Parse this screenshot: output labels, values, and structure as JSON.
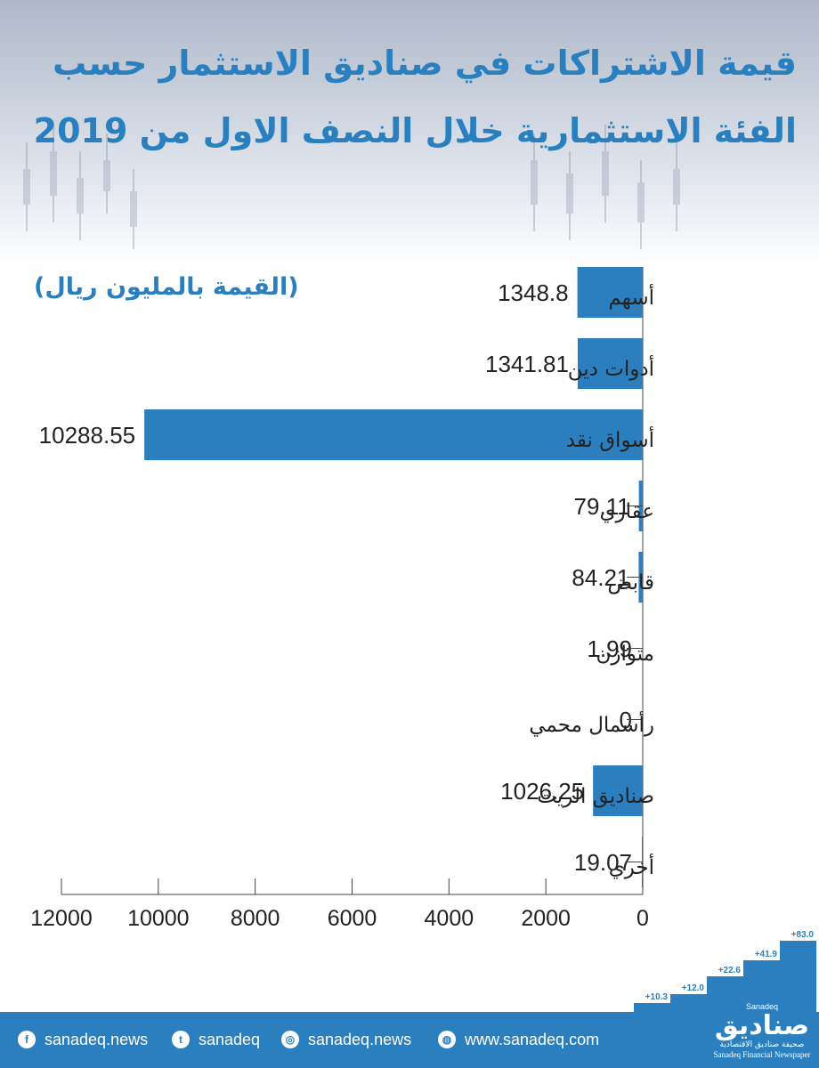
{
  "header": {
    "title_line1": "قيمة الاشتراكات في صناديق الاستثمار حسب",
    "title_line2": "الفئة الاستثمارية خلال النصف الاول من 2019"
  },
  "chart_data": {
    "type": "bar",
    "orientation": "horizontal",
    "unit_label": "(القيمة بالمليون ريال)",
    "categories": [
      "أسهم",
      "أدوات دين",
      "أسواق نقد",
      "عقاري",
      "قابض",
      "متوازن",
      "رأسمال محمي",
      "صناديق الريت",
      "أخري"
    ],
    "values": [
      1348.8,
      1341.81,
      10288.55,
      79.11,
      84.21,
      1.99,
      0,
      1026.25,
      19.07
    ],
    "value_labels": [
      "1348.8",
      "1341.81",
      "10288.55",
      "79.11",
      "84.21",
      "1.99",
      "0",
      "1026.25",
      "19.07"
    ],
    "xlim": [
      0,
      12000
    ],
    "x_ticks": [
      "0",
      "2000",
      "4000",
      "6000",
      "8000",
      "10000",
      "12000"
    ],
    "x_tick_values": [
      0,
      2000,
      4000,
      6000,
      8000,
      10000,
      12000
    ],
    "bar_color": "#2c7fbe",
    "grid": false
  },
  "decor": {
    "steps": [
      "+10.3",
      "+12.0",
      "+22.6",
      "+41.9",
      "+83.0"
    ]
  },
  "footer": {
    "facebook": "sanadeq.news",
    "twitter": "sanadeq",
    "instagram": "sanadeq.news",
    "website": "www.sanadeq.com",
    "brand_en_top": "Sanadeq",
    "brand_ar": "صناديق",
    "brand_ar_sub": "صحيفة صناديق الاقتصادية",
    "brand_en_sub": "Sanadeq Financial Newspaper",
    "facebook_icon": "facebook-icon",
    "twitter_icon": "twitter-icon",
    "instagram_icon": "instagram-icon",
    "web_icon": "globe-icon",
    "accent": "#2c7fbe"
  }
}
